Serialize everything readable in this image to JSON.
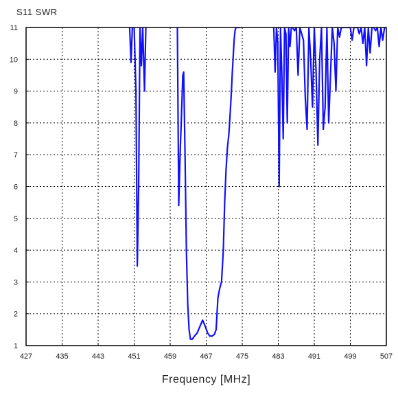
{
  "chart_data": {
    "type": "line",
    "title": "S11 SWR",
    "xlabel": "Frequency [MHz]",
    "ylabel": "",
    "xlim": [
      427,
      507
    ],
    "ylim": [
      1,
      11
    ],
    "x_ticks": [
      427,
      435,
      443,
      451,
      459,
      467,
      475,
      483,
      491,
      499,
      507
    ],
    "y_ticks": [
      1,
      2,
      3,
      4,
      5,
      6,
      7,
      8,
      9,
      10,
      11
    ],
    "grid": true,
    "grid_style": "dotted",
    "series": [
      {
        "color": "#1010ff",
        "x": [
          450.0,
          450.3,
          450.6,
          451.0,
          451.4,
          451.7,
          452.0,
          452.3,
          452.6,
          452.9,
          453.3,
          453.6,
          460.6,
          460.9,
          461.2,
          461.5,
          461.8,
          462.0,
          462.3,
          462.6,
          462.9,
          463.2,
          463.5,
          463.9,
          464.4,
          465.0,
          465.6,
          466.2,
          466.8,
          467.3,
          467.8,
          468.3,
          468.8,
          469.2,
          469.6,
          470.0,
          470.4,
          470.8,
          471.1,
          471.4,
          471.7,
          472.0,
          472.2,
          472.4,
          472.6,
          472.8,
          473.0,
          473.2,
          473.4,
          473.6,
          473.8,
          474.0,
          474.3,
          474.6,
          482.0,
          482.3,
          482.6,
          482.9,
          483.2,
          483.5,
          483.8,
          484.1,
          484.4,
          484.7,
          485.0,
          485.3,
          485.6,
          485.9,
          486.2,
          486.6,
          487.0,
          487.4,
          487.8,
          488.2,
          488.6,
          489.0,
          489.4,
          489.8,
          490.2,
          490.6,
          491.0,
          491.4,
          491.8,
          492.2,
          492.6,
          493.0,
          493.4,
          493.8,
          494.2,
          494.6,
          495.0,
          495.4,
          495.8,
          496.2,
          496.6,
          497.0,
          497.4,
          497.8,
          498.2,
          498.6,
          499.0,
          499.4,
          499.8,
          500.2,
          500.6,
          501.0,
          501.4,
          501.8,
          502.2,
          502.6,
          503.0,
          503.4,
          503.8,
          504.2,
          504.6,
          505.0,
          505.4,
          505.8,
          506.2,
          506.6,
          507.0
        ],
        "y": [
          11.0,
          9.9,
          11.0,
          11.0,
          9.0,
          3.5,
          6.0,
          11.0,
          9.8,
          11.0,
          9.0,
          11.0,
          11.0,
          5.4,
          7.0,
          8.2,
          9.5,
          9.6,
          7.0,
          4.0,
          2.3,
          1.5,
          1.2,
          1.2,
          1.3,
          1.4,
          1.6,
          1.8,
          1.6,
          1.4,
          1.3,
          1.3,
          1.35,
          1.5,
          2.5,
          2.8,
          3.0,
          4.0,
          5.5,
          6.5,
          7.2,
          7.6,
          8.0,
          8.5,
          9.0,
          9.6,
          10.1,
          10.6,
          10.9,
          11.0,
          11.0,
          11.0,
          11.0,
          11.0,
          11.0,
          9.6,
          11.0,
          10.5,
          6.0,
          11.0,
          9.5,
          7.5,
          11.0,
          10.8,
          8.0,
          11.0,
          10.4,
          11.0,
          11.0,
          10.9,
          11.0,
          9.5,
          11.0,
          10.8,
          10.6,
          8.8,
          7.8,
          11.0,
          10.0,
          8.5,
          11.0,
          9.6,
          7.3,
          10.0,
          11.0,
          7.8,
          8.5,
          11.0,
          8.0,
          9.5,
          11.0,
          10.5,
          9.0,
          11.0,
          10.7,
          11.0,
          11.0,
          11.0,
          11.0,
          11.0,
          11.0,
          10.6,
          11.0,
          11.0,
          11.0,
          10.8,
          11.0,
          10.5,
          11.0,
          9.8,
          11.0,
          10.2,
          11.0,
          11.0,
          10.9,
          11.0,
          10.4,
          11.0,
          10.6,
          11.0,
          11.0
        ]
      }
    ]
  }
}
